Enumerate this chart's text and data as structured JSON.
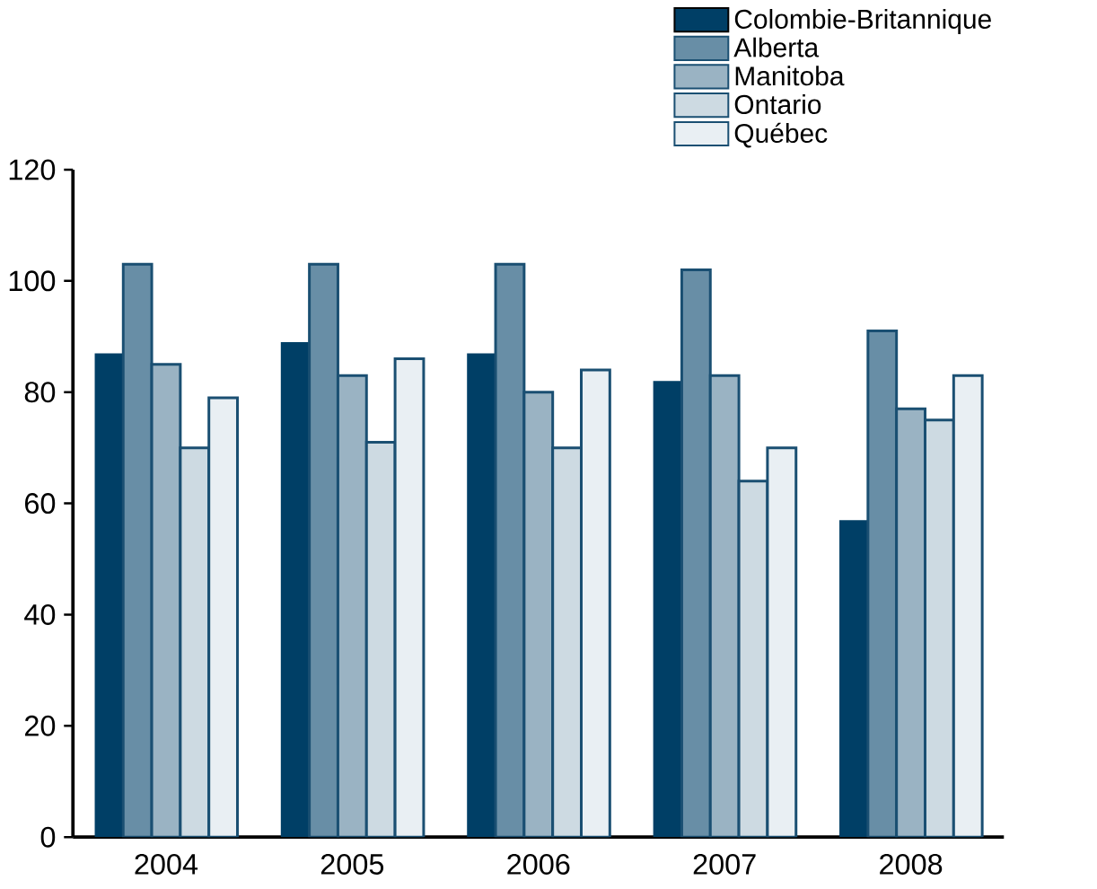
{
  "chart_data": {
    "type": "bar",
    "categories": [
      "2004",
      "2005",
      "2006",
      "2007",
      "2008"
    ],
    "series": [
      {
        "name": "Colombie-Britannique",
        "color": "#003f66",
        "values": [
          87,
          89,
          87,
          82,
          57
        ]
      },
      {
        "name": "Alberta",
        "color": "#688ea6",
        "values": [
          103,
          103,
          103,
          102,
          91
        ]
      },
      {
        "name": "Manitoba",
        "color": "#9ab3c3",
        "values": [
          85,
          83,
          80,
          83,
          77
        ]
      },
      {
        "name": "Ontario",
        "color": "#cddae2",
        "values": [
          70,
          71,
          70,
          64,
          75
        ]
      },
      {
        "name": "Québec",
        "color": "#e9eff3",
        "values": [
          79,
          86,
          84,
          70,
          83
        ]
      }
    ],
    "ylim": [
      0,
      120
    ],
    "yticks": [
      0,
      20,
      40,
      60,
      80,
      100,
      120
    ],
    "grid": false,
    "legend": "top right"
  }
}
